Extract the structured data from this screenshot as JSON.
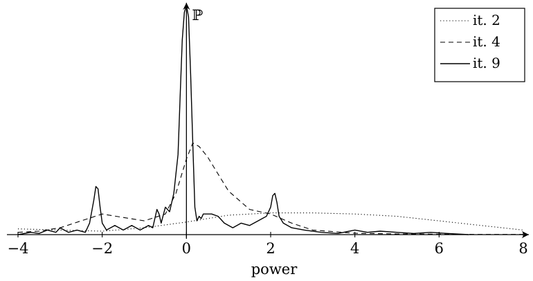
{
  "chart_data": {
    "type": "line",
    "xlabel": "power",
    "ylabel": "ℙ",
    "xlim": [
      -4,
      8
    ],
    "ylim": [
      0,
      1
    ],
    "x_ticks": [
      -4,
      -2,
      0,
      2,
      4,
      6,
      8
    ],
    "x_tick_labels": [
      "−4",
      "−2",
      "0",
      "2",
      "4",
      "6",
      "8"
    ],
    "grid": false,
    "legend_position": "top-right",
    "series": [
      {
        "name": "it. 2",
        "line_style": "dotted",
        "x": [
          -4,
          -3,
          -2,
          -1,
          0,
          0.5,
          1,
          2,
          3,
          4,
          5,
          6,
          7,
          8
        ],
        "y": [
          0.025,
          0.02,
          0.015,
          0.03,
          0.055,
          0.07,
          0.085,
          0.095,
          0.095,
          0.09,
          0.08,
          0.06,
          0.04,
          0.02
        ]
      },
      {
        "name": "it. 4",
        "line_style": "dashed",
        "x": [
          -4,
          -3.5,
          -3,
          -2.5,
          -2,
          -1.5,
          -1,
          -0.5,
          -0.25,
          0,
          0.15,
          0.3,
          0.5,
          0.8,
          1,
          1.5,
          2,
          2.5,
          3,
          4,
          5,
          6,
          7,
          8
        ],
        "y": [
          0.01,
          0.015,
          0.03,
          0.06,
          0.09,
          0.075,
          0.06,
          0.09,
          0.18,
          0.33,
          0.4,
          0.385,
          0.34,
          0.25,
          0.19,
          0.11,
          0.09,
          0.05,
          0.02,
          0.006,
          0.003,
          0.002,
          0.001,
          0.001
        ],
        "values_estimated": true
      },
      {
        "name": "it. 9",
        "line_style": "solid",
        "x": [
          -4,
          -3.7,
          -3.5,
          -3.3,
          -3.1,
          -3,
          -2.8,
          -2.6,
          -2.4,
          -2.3,
          -2.2,
          -2.15,
          -2.1,
          -2.05,
          -2.0,
          -1.9,
          -1.7,
          -1.5,
          -1.3,
          -1.1,
          -0.9,
          -0.8,
          -0.75,
          -0.7,
          -0.65,
          -0.6,
          -0.5,
          -0.4,
          -0.3,
          -0.2,
          -0.15,
          -0.1,
          -0.05,
          0,
          0.05,
          0.1,
          0.15,
          0.2,
          0.25,
          0.3,
          0.35,
          0.4,
          0.6,
          0.75,
          0.9,
          1.1,
          1.3,
          1.5,
          1.7,
          1.9,
          2.0,
          2.05,
          2.1,
          2.15,
          2.2,
          2.3,
          2.5,
          2.8,
          3.2,
          3.6,
          4.0,
          4.3,
          4.6,
          5.0,
          5.4,
          5.8,
          6.2,
          6.7
        ],
        "y": [
          0.0,
          0.01,
          0.005,
          0.02,
          0.01,
          0.03,
          0.01,
          0.02,
          0.01,
          0.05,
          0.15,
          0.21,
          0.2,
          0.12,
          0.05,
          0.02,
          0.04,
          0.02,
          0.04,
          0.02,
          0.04,
          0.03,
          0.07,
          0.11,
          0.09,
          0.05,
          0.12,
          0.1,
          0.18,
          0.35,
          0.6,
          0.85,
          0.97,
          1.0,
          0.95,
          0.7,
          0.4,
          0.12,
          0.06,
          0.08,
          0.07,
          0.09,
          0.09,
          0.08,
          0.05,
          0.03,
          0.05,
          0.04,
          0.06,
          0.08,
          0.12,
          0.17,
          0.18,
          0.14,
          0.08,
          0.05,
          0.03,
          0.02,
          0.01,
          0.005,
          0.02,
          0.01,
          0.015,
          0.01,
          0.005,
          0.01,
          0.005,
          0.0
        ],
        "values_estimated": true
      }
    ]
  }
}
